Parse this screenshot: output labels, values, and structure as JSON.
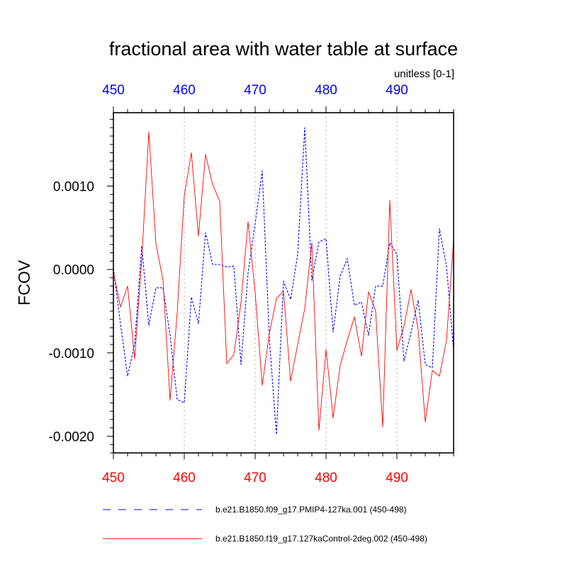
{
  "chart_data": {
    "type": "line",
    "title": "fractional area with water table at surface",
    "units_label": "unitless [0-1]",
    "ylabel": "FCOV",
    "xlabel": "",
    "xlim": [
      450,
      498
    ],
    "ylim": [
      -0.0022,
      0.00188
    ],
    "x_ticks": [
      450,
      460,
      470,
      480,
      490
    ],
    "x_tick_labels": [
      "450",
      "460",
      "470",
      "480",
      "490"
    ],
    "y_ticks": [
      0.001,
      0.0,
      -0.001,
      -0.002
    ],
    "y_tick_labels": [
      "0.0010",
      "0.0000",
      "-0.0010",
      "-0.0020"
    ],
    "grid": "vertical dotted at x ticks",
    "legend_position": "bottom",
    "x": [
      450,
      451,
      452,
      453,
      454,
      455,
      456,
      457,
      458,
      459,
      460,
      461,
      462,
      463,
      464,
      465,
      466,
      467,
      468,
      469,
      470,
      471,
      472,
      473,
      474,
      475,
      476,
      477,
      478,
      479,
      480,
      481,
      482,
      483,
      484,
      485,
      486,
      487,
      488,
      489,
      490,
      491,
      492,
      493,
      494,
      495,
      496,
      497,
      498
    ],
    "series": [
      {
        "name": "b.e21.B1850.f09_g17.PMIP4-127ka.001 (450-498)",
        "color": "#0000ff",
        "style": "dashed",
        "values": [
          1e-05,
          -0.00065,
          -0.00128,
          -0.00089,
          0.00028,
          -0.00067,
          -0.00022,
          -0.00022,
          -0.00079,
          -0.00156,
          -0.0016,
          -0.00033,
          -0.00065,
          0.00044,
          6e-05,
          6e-05,
          3e-05,
          4e-05,
          -0.00114,
          -4e-05,
          0.00055,
          0.00118,
          -0.00083,
          -0.00198,
          -0.00014,
          -0.00036,
          0.00018,
          0.0017,
          -0.00013,
          0.00033,
          0.00037,
          -0.00075,
          -8e-05,
          0.00013,
          -0.00043,
          -0.00039,
          -0.00079,
          -0.0002,
          -0.0002,
          0.00032,
          0.00018,
          -0.0011,
          -0.00075,
          -0.00037,
          -0.00114,
          -0.00118,
          0.00049,
          4e-05,
          -0.00097
        ]
      },
      {
        "name": "b.e21.B1850.f19_g17.127kaControl-2deg.002 (450-498)",
        "color": "#ff0000",
        "style": "solid",
        "values": [
          -3e-05,
          -0.00045,
          -0.0002,
          -0.00107,
          0.00012,
          0.00165,
          0.00031,
          -0.00013,
          -0.00157,
          -0.00052,
          0.00088,
          0.0014,
          0.0004,
          0.00138,
          0.00102,
          0.00082,
          -0.00113,
          -0.00102,
          -0.0004,
          0.00057,
          -0.00028,
          -0.00139,
          -0.00077,
          -0.00035,
          -0.00026,
          -0.00134,
          -0.0009,
          -0.00047,
          0.00032,
          -0.00193,
          -0.00096,
          -0.00178,
          -0.00115,
          -0.00085,
          -0.00057,
          -0.00104,
          -0.00027,
          -0.0005,
          -0.00189,
          0.00083,
          -0.00097,
          -0.00068,
          -0.00024,
          -0.00072,
          -0.00183,
          -0.00121,
          -0.00128,
          -0.00085,
          0.00035
        ]
      }
    ]
  }
}
